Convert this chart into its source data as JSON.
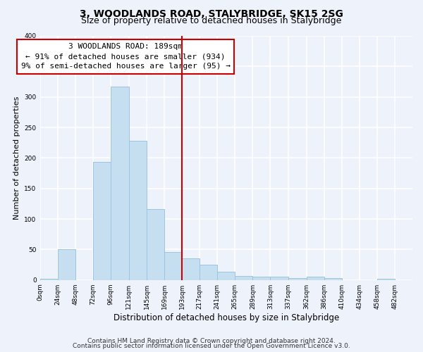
{
  "title": "3, WOODLANDS ROAD, STALYBRIDGE, SK15 2SG",
  "subtitle": "Size of property relative to detached houses in Stalybridge",
  "xlabel": "Distribution of detached houses by size in Stalybridge",
  "ylabel": "Number of detached properties",
  "bar_left_edges": [
    0,
    24,
    48,
    72,
    96,
    121,
    145,
    169,
    193,
    217,
    241,
    265,
    289,
    313,
    337,
    362,
    386,
    410,
    434,
    458
  ],
  "bar_widths": [
    24,
    24,
    24,
    24,
    25,
    24,
    24,
    24,
    24,
    24,
    24,
    24,
    24,
    24,
    25,
    24,
    24,
    24,
    24,
    24
  ],
  "bar_heights": [
    2,
    51,
    0,
    194,
    317,
    228,
    116,
    46,
    35,
    25,
    13,
    7,
    5,
    5,
    3,
    5,
    3,
    0,
    0,
    2
  ],
  "bar_color": "#c5dff0",
  "bar_edge_color": "#9dc4e0",
  "vline_x": 193,
  "vline_color": "#cc0000",
  "annotation_line1": "3 WOODLANDS ROAD: 189sqm",
  "annotation_line2": "← 91% of detached houses are smaller (934)",
  "annotation_line3": "9% of semi-detached houses are larger (95) →",
  "annotation_box_color": "#ffffff",
  "annotation_box_edge_color": "#cc0000",
  "tick_labels": [
    "0sqm",
    "24sqm",
    "48sqm",
    "72sqm",
    "96sqm",
    "121sqm",
    "145sqm",
    "169sqm",
    "193sqm",
    "217sqm",
    "241sqm",
    "265sqm",
    "289sqm",
    "313sqm",
    "337sqm",
    "362sqm",
    "386sqm",
    "410sqm",
    "434sqm",
    "458sqm",
    "482sqm"
  ],
  "tick_positions": [
    0,
    24,
    48,
    72,
    96,
    121,
    145,
    169,
    193,
    217,
    241,
    265,
    289,
    313,
    337,
    362,
    386,
    410,
    434,
    458,
    482
  ],
  "xlim": [
    0,
    506
  ],
  "ylim": [
    0,
    400
  ],
  "yticks": [
    0,
    50,
    100,
    150,
    200,
    250,
    300,
    350,
    400
  ],
  "footnote1": "Contains HM Land Registry data © Crown copyright and database right 2024.",
  "footnote2": "Contains public sector information licensed under the Open Government Licence v3.0.",
  "bg_color": "#eef2fa",
  "plot_bg_color": "#eef2fa",
  "grid_color": "#ffffff",
  "title_fontsize": 10,
  "subtitle_fontsize": 9,
  "xlabel_fontsize": 8.5,
  "ylabel_fontsize": 8,
  "tick_fontsize": 6.5,
  "annot_fontsize": 8,
  "footnote_fontsize": 6.5
}
